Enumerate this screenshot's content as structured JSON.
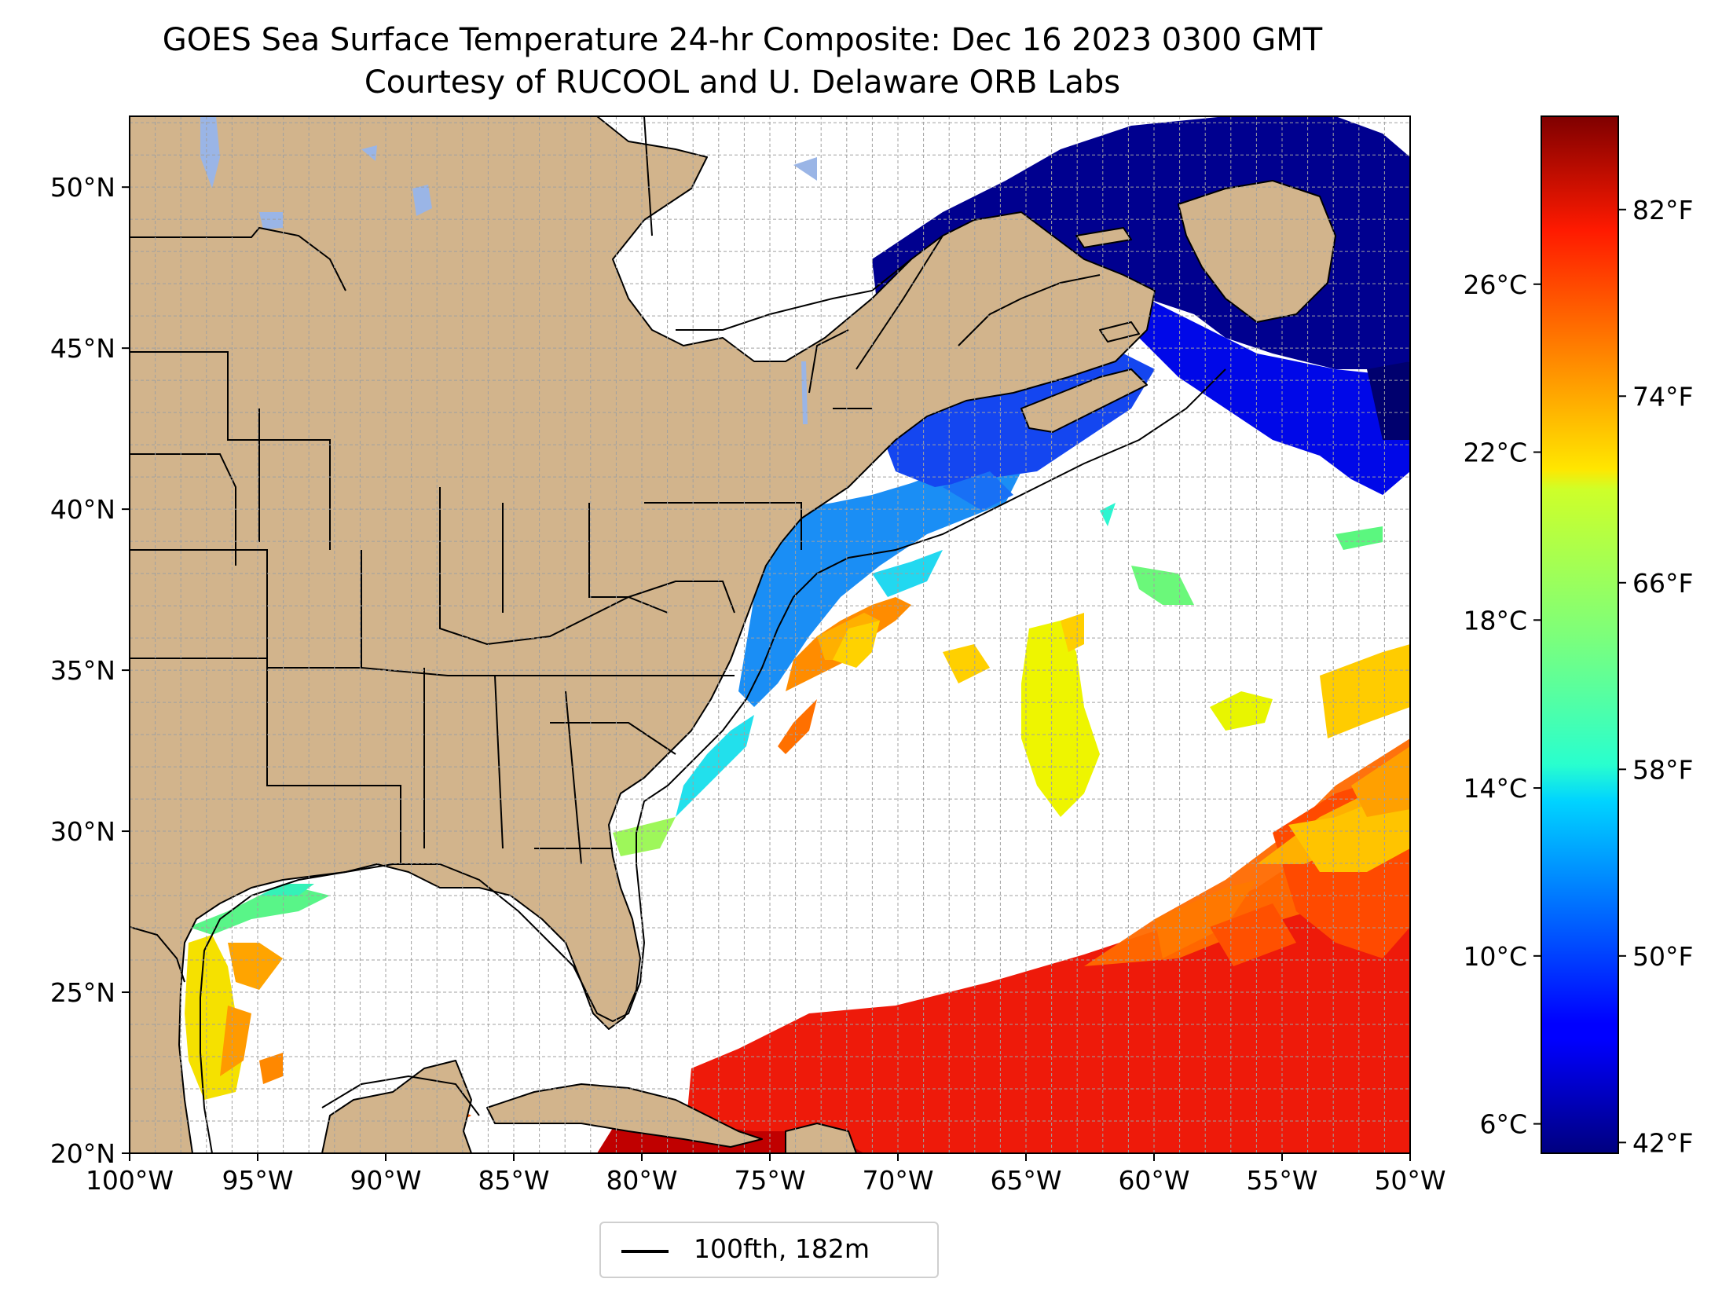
{
  "title": {
    "line1": "GOES Sea Surface Temperature 24-hr Composite: Dec 16 2023 0300 GMT",
    "line2": "Courtesy of RUCOOL and U. Delaware ORB Labs"
  },
  "map": {
    "lon_range": [
      -100,
      -50
    ],
    "lat_range": [
      20,
      52.2
    ],
    "lon_ticks": [
      {
        "value": -100,
        "label": "100°W"
      },
      {
        "value": -95,
        "label": "95°W"
      },
      {
        "value": -90,
        "label": "90°W"
      },
      {
        "value": -85,
        "label": "85°W"
      },
      {
        "value": -80,
        "label": "80°W"
      },
      {
        "value": -75,
        "label": "75°W"
      },
      {
        "value": -70,
        "label": "70°W"
      },
      {
        "value": -65,
        "label": "65°W"
      },
      {
        "value": -60,
        "label": "60°W"
      },
      {
        "value": -55,
        "label": "55°W"
      },
      {
        "value": -50,
        "label": "50°W"
      }
    ],
    "lat_ticks": [
      {
        "value": 20,
        "label": "20°N"
      },
      {
        "value": 25,
        "label": "25°N"
      },
      {
        "value": 30,
        "label": "30°N"
      },
      {
        "value": 35,
        "label": "35°N"
      },
      {
        "value": 40,
        "label": "40°N"
      },
      {
        "value": 45,
        "label": "45°N"
      },
      {
        "value": 50,
        "label": "50°N"
      }
    ],
    "grid": true,
    "land_color": "#d2b48c",
    "no_data_color": "#ffffff",
    "lake_color_light": "#9ab5e6",
    "contour_label": "100fth, 182m"
  },
  "colorbar": {
    "colormap": "jet",
    "range_c": [
      5.3,
      30
    ],
    "celsius_ticks": [
      {
        "value": 6,
        "label": "6°C"
      },
      {
        "value": 10,
        "label": "10°C"
      },
      {
        "value": 14,
        "label": "14°C"
      },
      {
        "value": 18,
        "label": "18°C"
      },
      {
        "value": 22,
        "label": "22°C"
      },
      {
        "value": 26,
        "label": "26°C"
      }
    ],
    "fahrenheit_ticks": [
      {
        "value": 42,
        "label": "42°F"
      },
      {
        "value": 50,
        "label": "50°F"
      },
      {
        "value": 58,
        "label": "58°F"
      },
      {
        "value": 66,
        "label": "66°F"
      },
      {
        "value": 74,
        "label": "74°F"
      },
      {
        "value": 82,
        "label": "82°F"
      }
    ]
  },
  "legend": {
    "label": "100fth, 182m"
  }
}
